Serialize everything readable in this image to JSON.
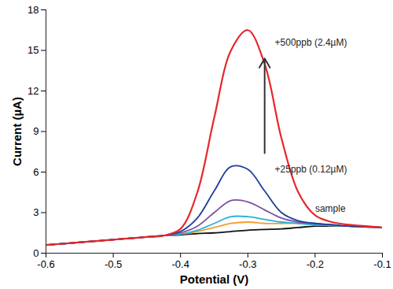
{
  "chart_data": {
    "type": "line",
    "x_label": "Potential (V)",
    "y_label": "Current (µA)",
    "x": [
      -0.6,
      -0.575,
      -0.55,
      -0.525,
      -0.5,
      -0.475,
      -0.45,
      -0.425,
      -0.4,
      -0.375,
      -0.35,
      -0.325,
      -0.3,
      -0.275,
      -0.25,
      -0.225,
      -0.2,
      -0.175,
      -0.15,
      -0.125,
      -0.1
    ],
    "series": [
      {
        "name": "sample",
        "color": "#111111",
        "values": [
          0.6,
          0.7,
          0.8,
          0.9,
          1.0,
          1.1,
          1.2,
          1.3,
          1.35,
          1.45,
          1.5,
          1.6,
          1.7,
          1.75,
          1.8,
          1.9,
          2.0,
          2.0,
          2.0,
          1.95,
          1.9
        ]
      },
      {
        "color": "#f0a030",
        "values": [
          0.6,
          0.7,
          0.8,
          0.9,
          1.0,
          1.1,
          1.2,
          1.3,
          1.4,
          1.6,
          1.9,
          2.2,
          2.3,
          2.2,
          2.2,
          2.2,
          2.1,
          2.05,
          2.0,
          1.95,
          1.9
        ]
      },
      {
        "color": "#2ab0d8",
        "values": [
          0.6,
          0.7,
          0.8,
          0.9,
          1.0,
          1.1,
          1.2,
          1.3,
          1.4,
          1.7,
          2.2,
          2.7,
          2.7,
          2.5,
          2.3,
          2.2,
          2.1,
          2.05,
          2.0,
          1.95,
          1.9
        ]
      },
      {
        "color": "#7d4fa0",
        "values": [
          0.6,
          0.7,
          0.8,
          0.9,
          1.0,
          1.1,
          1.2,
          1.3,
          1.5,
          2.0,
          3.0,
          3.9,
          3.8,
          3.2,
          2.6,
          2.3,
          2.2,
          2.1,
          2.0,
          1.95,
          1.9
        ]
      },
      {
        "color": "#1c3f9c",
        "values": [
          0.6,
          0.7,
          0.8,
          0.9,
          1.0,
          1.1,
          1.2,
          1.3,
          1.6,
          2.6,
          4.6,
          6.4,
          6.2,
          4.6,
          3.0,
          2.4,
          2.2,
          2.1,
          2.0,
          1.95,
          1.9
        ]
      },
      {
        "color": "#e8262a",
        "values": [
          0.6,
          0.7,
          0.8,
          0.9,
          1.0,
          1.1,
          1.2,
          1.3,
          1.8,
          4.5,
          10.0,
          15.0,
          16.5,
          14.0,
          8.5,
          4.5,
          2.8,
          2.3,
          2.1,
          2.0,
          1.9
        ]
      }
    ],
    "annotations": [
      {
        "text": "+500ppb (2.4µM)",
        "x": -0.26,
        "y": 15.6
      },
      {
        "text": "+25ppb (0.12µM)",
        "x": -0.26,
        "y": 6.2
      },
      {
        "text": "sample",
        "x": -0.2,
        "y": 3.3
      }
    ],
    "xlim": [
      -0.6,
      -0.1
    ],
    "xticks": [
      -0.6,
      -0.5,
      -0.4,
      -0.3,
      -0.2,
      -0.1
    ],
    "ylim": [
      0,
      18
    ],
    "yticks": [
      0,
      3,
      6,
      9,
      12,
      15,
      18
    ],
    "grid": false
  }
}
